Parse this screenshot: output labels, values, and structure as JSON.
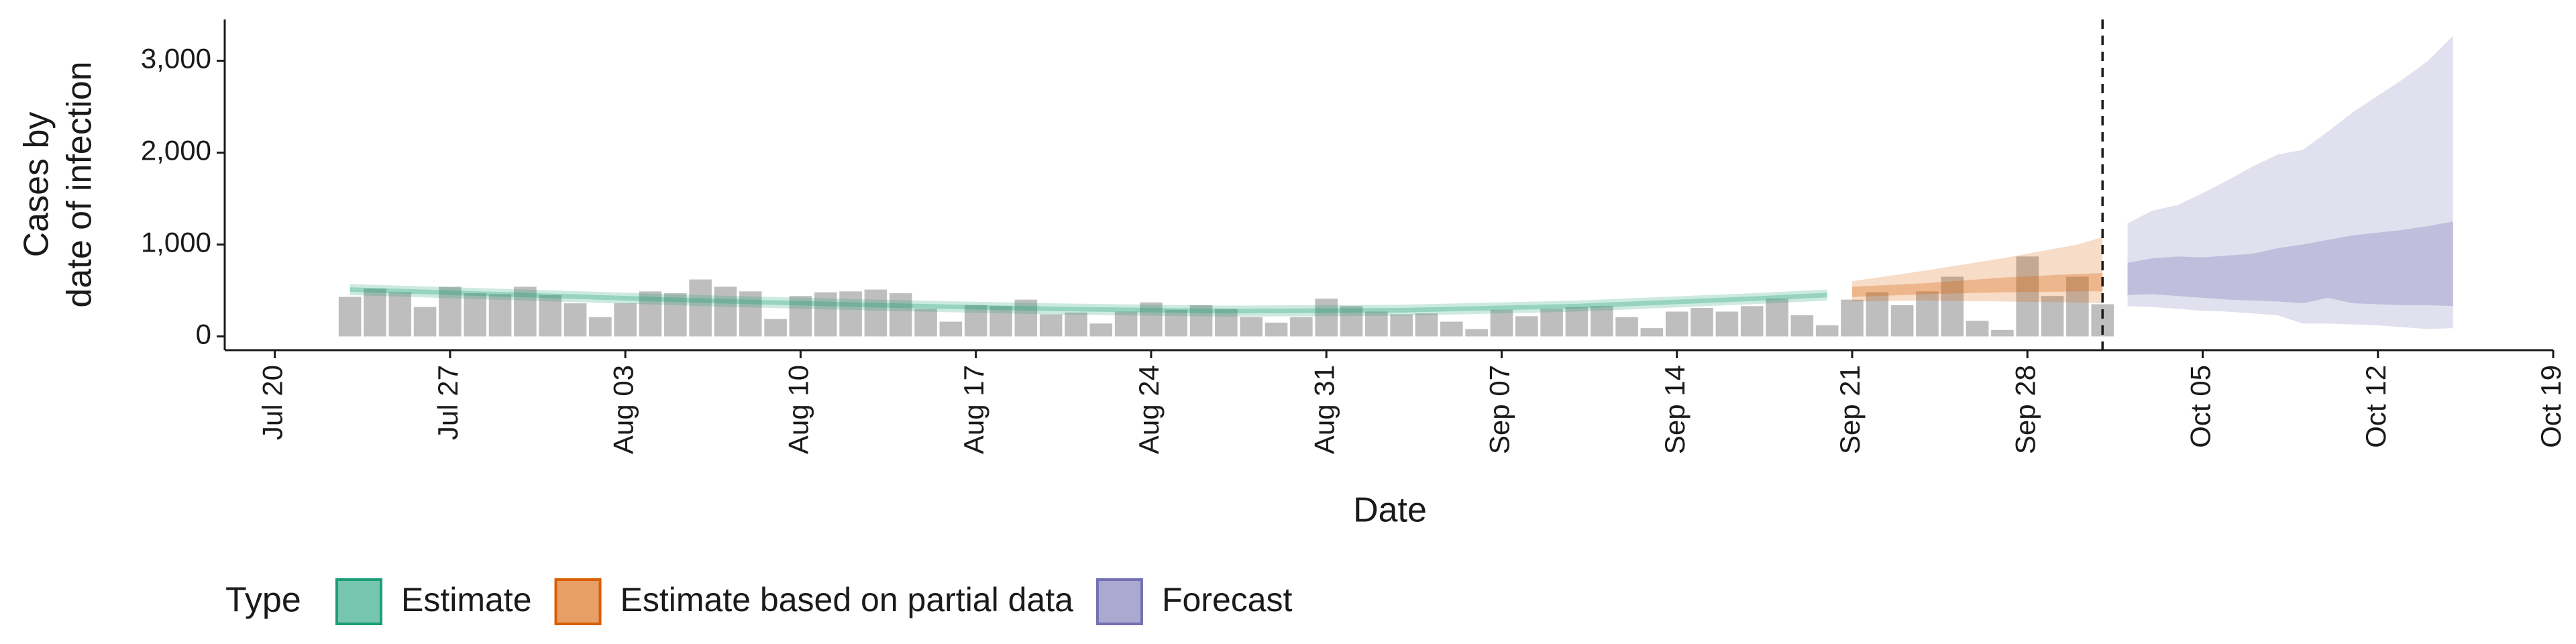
{
  "chart_data": {
    "type": "bar",
    "xlabel": "Date",
    "ylabel": [
      "Cases by",
      "date of infection"
    ],
    "xlim": [
      "Jul 18",
      "Oct 19"
    ],
    "xticks": [
      "Jul 20",
      "Jul 27",
      "Aug 03",
      "Aug 10",
      "Aug 17",
      "Aug 24",
      "Aug 31",
      "Sep 07",
      "Sep 14",
      "Sep 21",
      "Sep 28",
      "Oct 05",
      "Oct 12",
      "Oct 19"
    ],
    "ylim": [
      -150,
      3450
    ],
    "yticks": [
      0,
      {
        "value": 1000,
        "label": "1,000"
      },
      {
        "value": 2000,
        "label": "2,000"
      },
      {
        "value": 3000,
        "label": "3,000"
      }
    ],
    "vline": "Oct 01",
    "bars": {
      "color": "#bebebe",
      "x": [
        "Jul 23",
        "Jul 24",
        "Jul 25",
        "Jul 26",
        "Jul 27",
        "Jul 28",
        "Jul 29",
        "Jul 30",
        "Jul 31",
        "Aug 01",
        "Aug 02",
        "Aug 03",
        "Aug 04",
        "Aug 05",
        "Aug 06",
        "Aug 07",
        "Aug 08",
        "Aug 09",
        "Aug 10",
        "Aug 11",
        "Aug 12",
        "Aug 13",
        "Aug 14",
        "Aug 15",
        "Aug 16",
        "Aug 17",
        "Aug 18",
        "Aug 19",
        "Aug 20",
        "Aug 21",
        "Aug 22",
        "Aug 23",
        "Aug 24",
        "Aug 25",
        "Aug 26",
        "Aug 27",
        "Aug 28",
        "Aug 29",
        "Aug 30",
        "Aug 31",
        "Sep 01",
        "Sep 02",
        "Sep 03",
        "Sep 04",
        "Sep 05",
        "Sep 06",
        "Sep 07",
        "Sep 08",
        "Sep 09",
        "Sep 10",
        "Sep 11",
        "Sep 12",
        "Sep 13",
        "Sep 14",
        "Sep 15",
        "Sep 16",
        "Sep 17",
        "Sep 18",
        "Sep 19",
        "Sep 20",
        "Sep 21",
        "Sep 22",
        "Sep 23",
        "Sep 24",
        "Sep 25",
        "Sep 26",
        "Sep 27",
        "Sep 28",
        "Sep 29",
        "Sep 30",
        "Oct 01"
      ],
      "values": [
        430,
        520,
        480,
        320,
        540,
        470,
        460,
        540,
        450,
        360,
        210,
        360,
        490,
        470,
        620,
        540,
        490,
        190,
        440,
        480,
        490,
        510,
        470,
        300,
        160,
        340,
        330,
        400,
        240,
        260,
        140,
        270,
        370,
        290,
        340,
        300,
        210,
        150,
        210,
        410,
        330,
        270,
        240,
        250,
        160,
        80,
        290,
        220,
        300,
        320,
        330,
        210,
        90,
        270,
        310,
        270,
        330,
        410,
        230,
        120,
        400,
        480,
        340,
        490,
        650,
        170,
        70,
        870,
        440,
        650,
        350
      ]
    },
    "legend_title": "Type",
    "series": [
      {
        "name": "Estimate",
        "color": "#1b9e77",
        "x": [
          "Jul 23",
          "Jul 30",
          "Aug 06",
          "Aug 13",
          "Aug 20",
          "Aug 27",
          "Sep 03",
          "Sep 10",
          "Sep 17",
          "Sep 20"
        ],
        "lower_90": [
          450,
          390,
          330,
          280,
          240,
          215,
          225,
          270,
          350,
          390
        ],
        "upper_90": [
          570,
          510,
          450,
          400,
          360,
          335,
          345,
          390,
          470,
          510
        ],
        "lower_50": [
          485,
          425,
          365,
          315,
          275,
          250,
          260,
          305,
          385,
          425
        ],
        "upper_50": [
          535,
          475,
          415,
          365,
          325,
          300,
          310,
          355,
          435,
          475
        ]
      },
      {
        "name": "Estimate based on partial data",
        "color": "#d95f02",
        "x": [
          "Sep 21",
          "Sep 24",
          "Sep 27",
          "Sep 30",
          "Oct 01"
        ],
        "lower_90": [
          380,
          390,
          380,
          370,
          360
        ],
        "upper_90": [
          600,
          720,
          850,
          1000,
          1080
        ],
        "lower_50": [
          430,
          460,
          480,
          490,
          490
        ],
        "upper_50": [
          540,
          580,
          640,
          680,
          690
        ]
      },
      {
        "name": "Forecast",
        "color": "#7570b3",
        "x": [
          "Oct 02",
          "Oct 03",
          "Oct 04",
          "Oct 05",
          "Oct 06",
          "Oct 07",
          "Oct 08",
          "Oct 09",
          "Oct 10",
          "Oct 11",
          "Oct 12",
          "Oct 13",
          "Oct 14",
          "Oct 15"
        ],
        "lower_90": [
          330,
          320,
          300,
          280,
          270,
          250,
          230,
          140,
          140,
          130,
          120,
          100,
          80,
          90
        ],
        "upper_90": [
          1230,
          1370,
          1430,
          1560,
          1700,
          1850,
          1980,
          2030,
          2230,
          2440,
          2620,
          2800,
          3000,
          3270
        ],
        "lower_50": [
          450,
          460,
          440,
          420,
          400,
          390,
          380,
          360,
          420,
          360,
          350,
          340,
          340,
          330
        ],
        "upper_50": [
          800,
          850,
          870,
          860,
          880,
          900,
          960,
          1000,
          1050,
          1100,
          1130,
          1160,
          1200,
          1250
        ]
      }
    ]
  }
}
